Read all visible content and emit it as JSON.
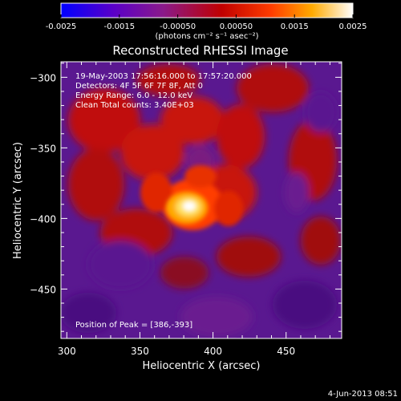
{
  "chart_data": {
    "type": "heatmap",
    "title": "Reconstructed RHESSI Image",
    "colorbar": {
      "min": -0.0025,
      "max": 0.0025,
      "ticks": [
        "-0.0025",
        "-0.0015",
        "-0.00050",
        "0.00050",
        "0.0015",
        "0.0025"
      ],
      "unit_label": "(photons cm⁻² s⁻¹ asec⁻²)",
      "palette": [
        "#0000ff",
        "#5a00c8",
        "#8a1a8a",
        "#c00000",
        "#ff3c00",
        "#ffaa00",
        "#ffffff"
      ]
    },
    "xlabel": "Heliocentric X (arcsec)",
    "ylabel": "Heliocentric Y (arcsec)",
    "xlim": [
      296,
      488
    ],
    "ylim": [
      -485,
      -289
    ],
    "xticks": [
      "300",
      "350",
      "400",
      "450"
    ],
    "yticks": [
      "-300",
      "-350",
      "-400",
      "-450"
    ],
    "annotations": [
      "19-May-2003 17:56:16.000 to 17:57:20.000",
      "Detectors: 4F 5F 6F 7F 8F, Att 0",
      "Energy Range: 6.0 - 12.0 keV",
      "Clean    Total counts: 3.40E+03"
    ],
    "peak_label": "Position of Peak = [386,-393]",
    "peak": {
      "x": 386,
      "y": -393
    }
  },
  "footer": {
    "timestamp": "4-Jun-2013 08:51"
  }
}
